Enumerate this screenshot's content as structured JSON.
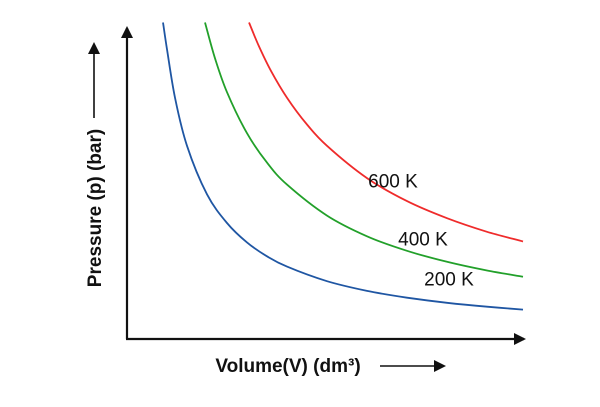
{
  "chart_data": {
    "type": "line",
    "title": "",
    "xlabel": "Volume(V) (dm³)",
    "ylabel": "Pressure (p) (bar)",
    "x_ticks": [],
    "y_ticks": [],
    "grid": false,
    "xlim": [
      0,
      10
    ],
    "ylim": [
      0,
      10
    ],
    "series": [
      {
        "name": "200 K",
        "color": "#1f56a3",
        "x": [
          0.9,
          1.0,
          1.2,
          1.5,
          2.0,
          2.5,
          3.0,
          3.5,
          4.0,
          5.0,
          6.0,
          7.0,
          8.0,
          9.0,
          9.9
        ],
        "y": [
          9.8,
          8.97,
          7.47,
          5.98,
          4.48,
          3.59,
          2.99,
          2.56,
          2.24,
          1.79,
          1.49,
          1.28,
          1.12,
          1.0,
          0.91
        ]
      },
      {
        "name": "400 K",
        "color": "#22a02a",
        "x": [
          1.95,
          2.2,
          2.5,
          3.0,
          3.5,
          4.0,
          5.0,
          6.0,
          7.0,
          8.0,
          9.0,
          9.9
        ],
        "y": [
          9.8,
          8.69,
          7.64,
          6.37,
          5.46,
          4.78,
          3.82,
          3.18,
          2.73,
          2.39,
          2.12,
          1.93
        ]
      },
      {
        "name": "600 K",
        "color": "#ef2b2b",
        "x": [
          3.05,
          3.3,
          3.6,
          4.0,
          4.5,
          5.0,
          6.0,
          7.0,
          8.0,
          9.0,
          9.9
        ],
        "y": [
          9.8,
          9.06,
          8.3,
          7.47,
          6.64,
          5.98,
          4.98,
          4.27,
          3.74,
          3.32,
          3.02
        ]
      }
    ]
  }
}
